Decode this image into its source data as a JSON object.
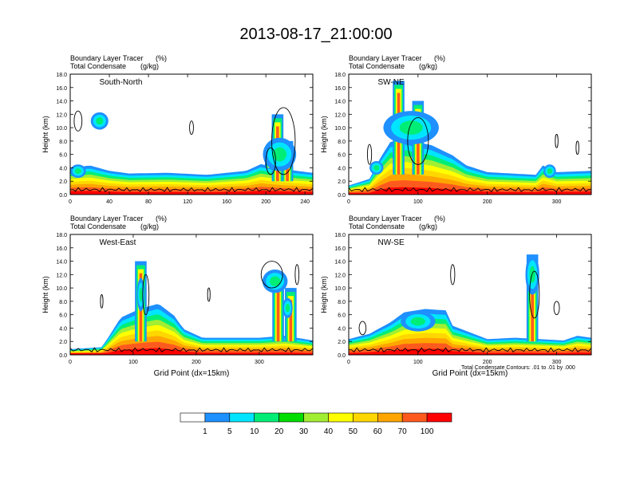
{
  "title": "2013-08-17_21:00:00",
  "footnote": "Total Condensate Contours: .01 to .01 by .000",
  "colors": {
    "bins": [
      "#ffffff",
      "#1e90ff",
      "#00e5ff",
      "#00ee76",
      "#00dd00",
      "#a2ee33",
      "#ffff00",
      "#ffd700",
      "#ffa500",
      "#ff5a1e",
      "#ff0000"
    ],
    "contour": "#000000"
  },
  "colorbar": {
    "labels": [
      "1",
      "5",
      "10",
      "20",
      "30",
      "40",
      "50",
      "60",
      "70",
      "100"
    ]
  },
  "chart_data": [
    {
      "type": "heatmap",
      "panel": "top-left",
      "label": "South-North",
      "field_title": "Boundary Layer Tracer",
      "field_units": "(%)",
      "contour_title": "Total Condensate",
      "contour_units": "(g/kg)",
      "ylabel": "Height (km)",
      "xlabel": "",
      "xlim": [
        0,
        248
      ],
      "ylim": [
        0,
        18
      ],
      "xticks": [
        0,
        40,
        80,
        120,
        160,
        200,
        240
      ],
      "xtick_labels": [
        "0",
        "40",
        "80",
        "120",
        "160",
        "200",
        "240"
      ],
      "yticks": [
        0,
        2,
        4,
        6,
        8,
        10,
        12,
        14,
        16,
        18
      ],
      "ytick_labels": [
        "0.0",
        "2.0",
        "4.0",
        "6.0",
        "8.0",
        "10.0",
        "12.0",
        "14.0",
        "16.0",
        "18.0"
      ],
      "layer_top_profile": [
        [
          0,
          3.6
        ],
        [
          20,
          4.0
        ],
        [
          40,
          3.2
        ],
        [
          60,
          2.8
        ],
        [
          100,
          2.9
        ],
        [
          140,
          2.6
        ],
        [
          180,
          3.2
        ],
        [
          195,
          4.2
        ],
        [
          215,
          3.5
        ],
        [
          248,
          2.9
        ]
      ],
      "plumes": [
        [
          212,
          2,
          12
        ],
        [
          222,
          2,
          8
        ],
        [
          205,
          4,
          6
        ]
      ],
      "blobs": [
        [
          30,
          11,
          18,
          2.6
        ],
        [
          8,
          3.5,
          16,
          2
        ],
        [
          214,
          6,
          34,
          5
        ]
      ],
      "contours": [
        [
          8,
          11,
          8,
          3
        ],
        [
          124,
          10,
          4,
          2
        ],
        [
          218,
          8,
          24,
          10
        ],
        [
          205,
          5,
          10,
          4
        ]
      ]
    },
    {
      "type": "heatmap",
      "panel": "top-right",
      "label": "SW-NE",
      "field_title": "Boundary Layer Tracer",
      "field_units": "(%)",
      "contour_title": "Total Condensate",
      "contour_units": "(g/kg)",
      "ylabel": "Height (km)",
      "xlabel": "",
      "xlim": [
        0,
        350
      ],
      "ylim": [
        0,
        18
      ],
      "xticks": [
        0,
        100,
        200,
        300
      ],
      "xtick_labels": [
        "0",
        "100",
        "200",
        "300"
      ],
      "yticks": [
        0,
        2,
        4,
        6,
        8,
        10,
        12,
        14,
        16,
        18
      ],
      "ytick_labels": [
        "0.0",
        "2.0",
        "4.0",
        "6.0",
        "8.0",
        "10.0",
        "12.0",
        "14.0",
        "16.0",
        "18.0"
      ],
      "layer_top_profile": [
        [
          0,
          1.0
        ],
        [
          30,
          2.0
        ],
        [
          45,
          5.0
        ],
        [
          60,
          7.5
        ],
        [
          80,
          8.0
        ],
        [
          120,
          7.0
        ],
        [
          150,
          5.5
        ],
        [
          170,
          4.0
        ],
        [
          200,
          3.0
        ],
        [
          270,
          2.6
        ],
        [
          280,
          4.0
        ],
        [
          300,
          3.0
        ],
        [
          350,
          3.2
        ]
      ],
      "plumes": [
        [
          72,
          3,
          17
        ],
        [
          100,
          3,
          14
        ]
      ],
      "blobs": [
        [
          90,
          10,
          80,
          5
        ],
        [
          40,
          4,
          20,
          2
        ],
        [
          290,
          3.5,
          18,
          2
        ]
      ],
      "contours": [
        [
          30,
          6,
          6,
          3
        ],
        [
          100,
          8,
          30,
          7
        ],
        [
          300,
          8,
          4,
          2
        ],
        [
          330,
          7,
          4,
          2
        ]
      ]
    },
    {
      "type": "heatmap",
      "panel": "bottom-left",
      "label": "West-East",
      "field_title": "Boundary Layer Tracer",
      "field_units": "(%)",
      "contour_title": "Total Condensate",
      "contour_units": "(g/kg)",
      "ylabel": "Height (km)",
      "xlabel": "Grid Point  (dx=15km)",
      "xlim": [
        0,
        385
      ],
      "ylim": [
        0,
        18
      ],
      "xticks": [
        0,
        100,
        200,
        300
      ],
      "xtick_labels": [
        "0",
        "100",
        "200",
        "300"
      ],
      "yticks": [
        0,
        2,
        4,
        6,
        8,
        10,
        12,
        14,
        16,
        18
      ],
      "ytick_labels": [
        "0.0",
        "2.0",
        "4.0",
        "6.0",
        "8.0",
        "10.0",
        "12.0",
        "14.0",
        "16.0",
        "18.0"
      ],
      "layer_top_profile": [
        [
          0,
          0.5
        ],
        [
          50,
          0.8
        ],
        [
          60,
          2.2
        ],
        [
          80,
          5.2
        ],
        [
          110,
          6.5
        ],
        [
          140,
          7.3
        ],
        [
          165,
          5.5
        ],
        [
          180,
          3.5
        ],
        [
          210,
          2.2
        ],
        [
          300,
          2.2
        ],
        [
          340,
          2.5
        ],
        [
          385,
          1.8
        ]
      ],
      "plumes": [
        [
          112,
          2,
          14
        ],
        [
          330,
          2,
          12
        ],
        [
          350,
          2,
          10
        ]
      ],
      "blobs": [
        [
          325,
          11,
          40,
          3.5
        ],
        [
          112,
          9,
          12,
          5
        ],
        [
          345,
          7,
          16,
          3
        ]
      ],
      "contours": [
        [
          50,
          8,
          4,
          2
        ],
        [
          120,
          9,
          10,
          6
        ],
        [
          220,
          9,
          4,
          2
        ],
        [
          320,
          12,
          34,
          4
        ],
        [
          360,
          12,
          6,
          3
        ]
      ]
    },
    {
      "type": "heatmap",
      "panel": "bottom-right",
      "label": "NW-SE",
      "field_title": "Boundary Layer Tracer",
      "field_units": "(%)",
      "contour_title": "Total Condensate",
      "contour_units": "(g/kg)",
      "ylabel": "Height (km)",
      "xlabel": "Grid Point  (dx=15km)",
      "xlim": [
        0,
        350
      ],
      "ylim": [
        0,
        18
      ],
      "xticks": [
        0,
        100,
        200,
        300
      ],
      "xtick_labels": [
        "0",
        "100",
        "200",
        "300"
      ],
      "yticks": [
        0,
        2,
        4,
        6,
        8,
        10,
        12,
        14,
        16,
        18
      ],
      "ytick_labels": [
        "0.0",
        "2.0",
        "4.0",
        "6.0",
        "8.0",
        "10.0",
        "12.0",
        "14.0",
        "16.0",
        "18.0"
      ],
      "layer_top_profile": [
        [
          0,
          2.0
        ],
        [
          30,
          2.8
        ],
        [
          60,
          4.5
        ],
        [
          80,
          6.0
        ],
        [
          110,
          6.5
        ],
        [
          140,
          6.3
        ],
        [
          150,
          4.0
        ],
        [
          200,
          2.0
        ],
        [
          240,
          2.2
        ],
        [
          310,
          1.8
        ],
        [
          330,
          2.5
        ],
        [
          350,
          2.2
        ]
      ],
      "plumes": [
        [
          265,
          2,
          15
        ]
      ],
      "blobs": [
        [
          265,
          12,
          20,
          6
        ],
        [
          100,
          5,
          50,
          3
        ]
      ],
      "contours": [
        [
          268,
          9,
          14,
          7
        ],
        [
          150,
          12,
          6,
          3
        ],
        [
          300,
          7,
          8,
          2
        ],
        [
          20,
          4,
          10,
          2
        ]
      ]
    }
  ]
}
